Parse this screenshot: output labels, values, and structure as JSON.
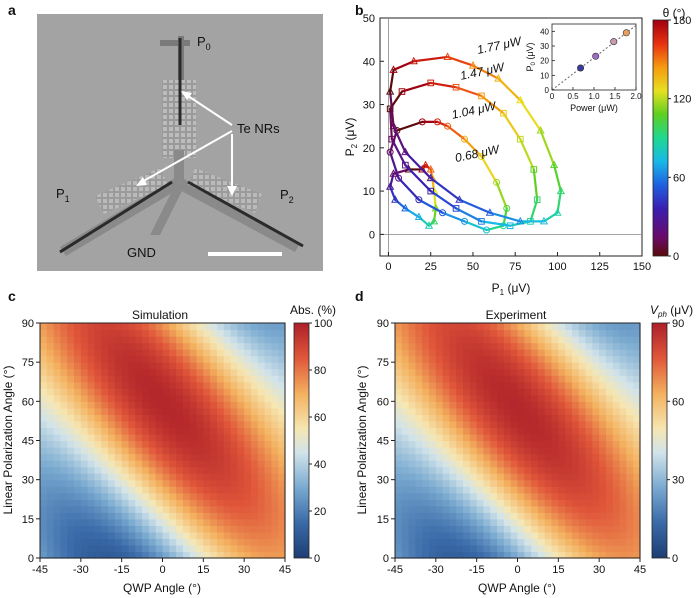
{
  "panels": {
    "a": {
      "letter": "a",
      "labels": {
        "p0": "P",
        "p0_sub": "0",
        "p1": "P",
        "p1_sub": "1",
        "p2": "P",
        "p2_sub": "2",
        "nrs": "Te NRs",
        "gnd": "GND"
      }
    },
    "b": {
      "letter": "b"
    },
    "c": {
      "letter": "c"
    },
    "d": {
      "letter": "d"
    }
  },
  "chart_data": [
    {
      "id": "b-main",
      "type": "scatter",
      "title": "",
      "xlabel": "P",
      "xlabel_sub": "1",
      "xlabel_unit": " (μV)",
      "ylabel": "P",
      "ylabel_sub": "2",
      "ylabel_unit": " (μV)",
      "xlim": [
        -5,
        150
      ],
      "ylim": [
        -5,
        50
      ],
      "xticks": [
        0,
        25,
        50,
        75,
        100,
        125,
        150
      ],
      "yticks": [
        0,
        10,
        20,
        30,
        40,
        50
      ],
      "series": [
        {
          "name": "0.68 μW",
          "label": "0.68 μW",
          "marker": "triangle",
          "points": [
            [
              20,
              15
            ],
            [
              22,
              16
            ],
            [
              25,
              15
            ],
            [
              26,
              13
            ],
            [
              27,
              10
            ],
            [
              28,
              6
            ],
            [
              27,
              3
            ],
            [
              24,
              2
            ],
            [
              18,
              4
            ],
            [
              10,
              6
            ],
            [
              4,
              8
            ],
            [
              1,
              11
            ],
            [
              3,
              14
            ],
            [
              12,
              15
            ]
          ]
        },
        {
          "name": "1.04 μW",
          "label": "1.04 μW",
          "marker": "circle",
          "points": [
            [
              20,
              26
            ],
            [
              29,
              26
            ],
            [
              35,
              25
            ],
            [
              45,
              22
            ],
            [
              55,
              18
            ],
            [
              64,
              12
            ],
            [
              70,
              6
            ],
            [
              68,
              2
            ],
            [
              58,
              1
            ],
            [
              45,
              3
            ],
            [
              32,
              5
            ],
            [
              18,
              8
            ],
            [
              6,
              13
            ],
            [
              1,
              19
            ],
            [
              5,
              24
            ]
          ]
        },
        {
          "name": "1.47 μW",
          "label": "1.47 μW",
          "marker": "square",
          "points": [
            [
              8,
              33
            ],
            [
              25,
              35
            ],
            [
              40,
              34
            ],
            [
              55,
              32
            ],
            [
              68,
              28
            ],
            [
              78,
              22
            ],
            [
              86,
              15
            ],
            [
              88,
              8
            ],
            [
              84,
              3
            ],
            [
              72,
              2
            ],
            [
              55,
              3
            ],
            [
              40,
              6
            ],
            [
              25,
              10
            ],
            [
              10,
              16
            ],
            [
              2,
              22
            ],
            [
              1,
              29
            ]
          ]
        },
        {
          "name": "1.77 μW",
          "label": "1.77 μW",
          "marker": "triangle",
          "points": [
            [
              3,
              38
            ],
            [
              15,
              40
            ],
            [
              35,
              41
            ],
            [
              50,
              39
            ],
            [
              65,
              36
            ],
            [
              78,
              31
            ],
            [
              90,
              24
            ],
            [
              98,
              16
            ],
            [
              102,
              10
            ],
            [
              100,
              5
            ],
            [
              92,
              3
            ],
            [
              78,
              3
            ],
            [
              60,
              5
            ],
            [
              42,
              8
            ],
            [
              25,
              13
            ],
            [
              10,
              19
            ],
            [
              3,
              25
            ],
            [
              1,
              33
            ]
          ]
        }
      ],
      "colorbar": {
        "label": "θ (°)",
        "min": 0,
        "max": 180,
        "ticks": [
          0,
          60,
          120,
          180
        ]
      }
    },
    {
      "id": "b-inset",
      "type": "scatter",
      "xlabel": "Power (μW)",
      "ylabel": "P",
      "ylabel_sub": "0",
      "ylabel_unit": " (μV)",
      "xlim": [
        0,
        2
      ],
      "ylim": [
        0,
        45
      ],
      "xticks": [
        0,
        0.5,
        1.0,
        1.5,
        2.0
      ],
      "xtick_labels": [
        "0",
        "0.5",
        "1.0",
        "1.5",
        "2.0"
      ],
      "yticks": [
        0,
        10,
        20,
        30,
        40
      ],
      "points": [
        [
          0.68,
          15
        ],
        [
          1.04,
          23
        ],
        [
          1.47,
          33
        ],
        [
          1.77,
          39
        ]
      ]
    },
    {
      "id": "c",
      "type": "heatmap",
      "title": "Simulation",
      "xlabel": "QWP Angle (°)",
      "ylabel": "Linear Polarization Angle (°)",
      "xlim": [
        -45,
        45
      ],
      "ylim": [
        0,
        90
      ],
      "xticks": [
        -45,
        -30,
        -15,
        0,
        15,
        30,
        45
      ],
      "yticks": [
        0,
        15,
        30,
        45,
        60,
        75,
        90
      ],
      "colorbar": {
        "label": "Abs. (%)",
        "min": 0,
        "max": 100,
        "ticks": [
          0,
          20,
          40,
          60,
          80,
          100
        ]
      },
      "model": {
        "offset": 50,
        "amplitude": 48,
        "phase_slope": 2,
        "phase_offset": -30
      }
    },
    {
      "id": "d",
      "type": "heatmap",
      "title": "Experiment",
      "xlabel": "QWP Angle (°)",
      "ylabel": "Linear Polarization Angle (°)",
      "xlim": [
        -45,
        45
      ],
      "ylim": [
        0,
        90
      ],
      "xticks": [
        -45,
        -30,
        -15,
        0,
        15,
        30,
        45
      ],
      "yticks": [
        0,
        15,
        30,
        45,
        60,
        75,
        90
      ],
      "colorbar": {
        "label": "V",
        "label_sub": "ph",
        "label_unit": " (μV)",
        "min": 0,
        "max": 90,
        "ticks": [
          0,
          30,
          60,
          90
        ]
      },
      "model": {
        "offset": 45,
        "amplitude": 43,
        "phase_slope": 2,
        "phase_offset": -25
      }
    }
  ]
}
